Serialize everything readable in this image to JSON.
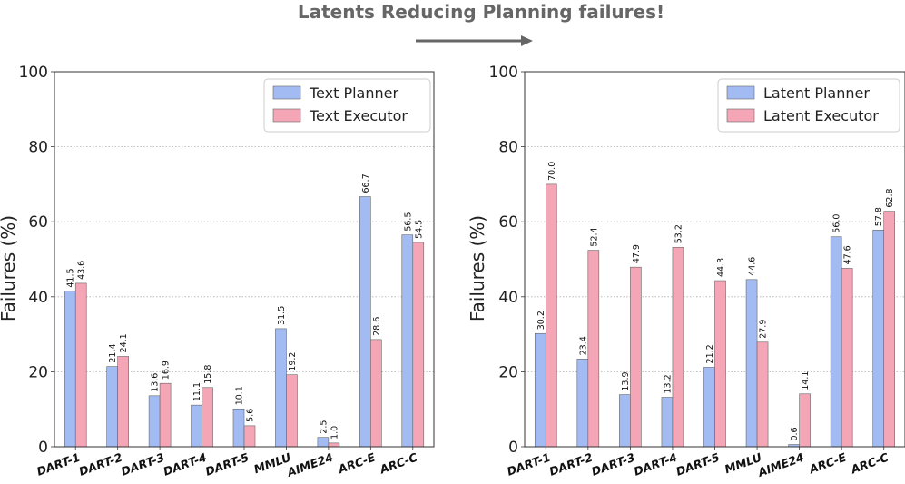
{
  "figure": {
    "title": "Latents Reducing Planning failures!"
  },
  "colors": {
    "planner": "#a2bbf2",
    "executor": "#f4a6b7",
    "title": "#666666",
    "arrow": "#666666"
  },
  "chart_data": [
    {
      "type": "bar",
      "title": "",
      "categories": [
        "DART-1",
        "DART-2",
        "DART-3",
        "DART-4",
        "DART-5",
        "MMLU",
        "AIME24",
        "ARC-E",
        "ARC-C"
      ],
      "series": [
        {
          "name": "Text Planner",
          "values": [
            41.5,
            21.4,
            13.6,
            11.1,
            10.1,
            31.5,
            2.5,
            66.7,
            56.5
          ]
        },
        {
          "name": "Text Executor",
          "values": [
            43.6,
            24.1,
            16.9,
            15.8,
            5.6,
            19.2,
            1.0,
            28.6,
            54.5
          ]
        }
      ],
      "xlabel": "",
      "ylabel": "Failures (%)",
      "ylim": [
        0,
        100
      ],
      "yticks": [
        0,
        20,
        40,
        60,
        80,
        100
      ],
      "grid": "horizontal dotted",
      "legend": "top-right"
    },
    {
      "type": "bar",
      "title": "",
      "categories": [
        "DART-1",
        "DART-2",
        "DART-3",
        "DART-4",
        "DART-5",
        "MMLU",
        "AIME24",
        "ARC-E",
        "ARC-C"
      ],
      "series": [
        {
          "name": "Latent Planner",
          "values": [
            30.2,
            23.4,
            13.9,
            13.2,
            21.2,
            44.6,
            0.6,
            56.0,
            57.8
          ]
        },
        {
          "name": "Latent Executor",
          "values": [
            70.0,
            52.4,
            47.9,
            53.2,
            44.3,
            27.9,
            14.1,
            47.6,
            62.8
          ]
        }
      ],
      "xlabel": "",
      "ylabel": "Failures (%)",
      "ylim": [
        0,
        100
      ],
      "yticks": [
        0,
        20,
        40,
        60,
        80,
        100
      ],
      "grid": "horizontal dotted",
      "legend": "top-left"
    }
  ]
}
